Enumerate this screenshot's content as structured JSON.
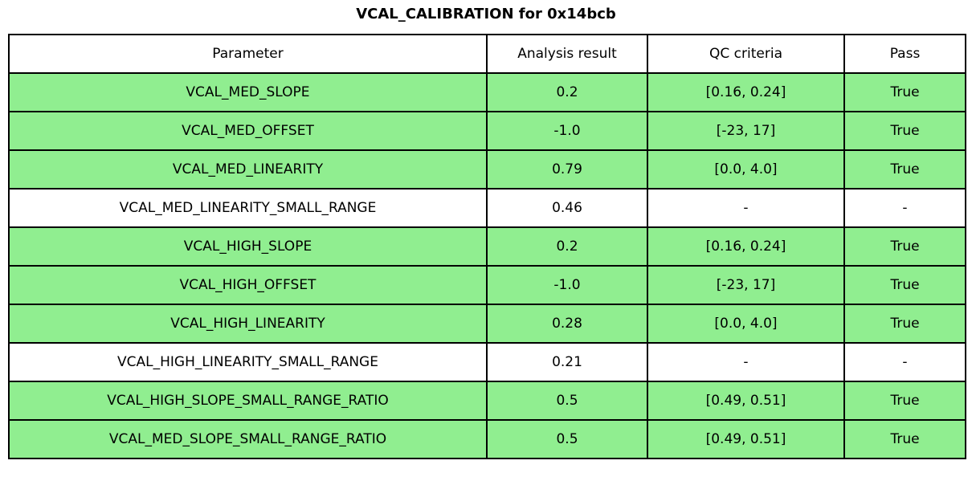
{
  "title": "VCAL_CALIBRATION for 0x14bcb",
  "colors": {
    "pass_row_green": "#90ee90",
    "neutral_row_white": "#ffffff",
    "border_black": "#000000"
  },
  "table": {
    "headers": [
      "Parameter",
      "Analysis result",
      "QC criteria",
      "Pass"
    ],
    "rows": [
      {
        "parameter": "VCAL_MED_SLOPE",
        "result": "0.2",
        "criteria": "[0.16, 0.24]",
        "pass": "True",
        "highlight": true
      },
      {
        "parameter": "VCAL_MED_OFFSET",
        "result": "-1.0",
        "criteria": "[-23, 17]",
        "pass": "True",
        "highlight": true
      },
      {
        "parameter": "VCAL_MED_LINEARITY",
        "result": "0.79",
        "criteria": "[0.0, 4.0]",
        "pass": "True",
        "highlight": true
      },
      {
        "parameter": "VCAL_MED_LINEARITY_SMALL_RANGE",
        "result": "0.46",
        "criteria": "-",
        "pass": "-",
        "highlight": false
      },
      {
        "parameter": "VCAL_HIGH_SLOPE",
        "result": "0.2",
        "criteria": "[0.16, 0.24]",
        "pass": "True",
        "highlight": true
      },
      {
        "parameter": "VCAL_HIGH_OFFSET",
        "result": "-1.0",
        "criteria": "[-23, 17]",
        "pass": "True",
        "highlight": true
      },
      {
        "parameter": "VCAL_HIGH_LINEARITY",
        "result": "0.28",
        "criteria": "[0.0, 4.0]",
        "pass": "True",
        "highlight": true
      },
      {
        "parameter": "VCAL_HIGH_LINEARITY_SMALL_RANGE",
        "result": "0.21",
        "criteria": "-",
        "pass": "-",
        "highlight": false
      },
      {
        "parameter": "VCAL_HIGH_SLOPE_SMALL_RANGE_RATIO",
        "result": "0.5",
        "criteria": "[0.49, 0.51]",
        "pass": "True",
        "highlight": true
      },
      {
        "parameter": "VCAL_MED_SLOPE_SMALL_RANGE_RATIO",
        "result": "0.5",
        "criteria": "[0.49, 0.51]",
        "pass": "True",
        "highlight": true
      }
    ]
  },
  "chart_data": {
    "type": "table",
    "title": "VCAL_CALIBRATION for 0x14bcb",
    "columns": [
      "Parameter",
      "Analysis result",
      "QC criteria",
      "Pass"
    ],
    "rows": [
      [
        "VCAL_MED_SLOPE",
        "0.2",
        "[0.16, 0.24]",
        "True"
      ],
      [
        "VCAL_MED_OFFSET",
        "-1.0",
        "[-23, 17]",
        "True"
      ],
      [
        "VCAL_MED_LINEARITY",
        "0.79",
        "[0.0, 4.0]",
        "True"
      ],
      [
        "VCAL_MED_LINEARITY_SMALL_RANGE",
        "0.46",
        "-",
        "-"
      ],
      [
        "VCAL_HIGH_SLOPE",
        "0.2",
        "[0.16, 0.24]",
        "True"
      ],
      [
        "VCAL_HIGH_OFFSET",
        "-1.0",
        "[-23, 17]",
        "True"
      ],
      [
        "VCAL_HIGH_LINEARITY",
        "0.28",
        "[0.0, 4.0]",
        "True"
      ],
      [
        "VCAL_HIGH_LINEARITY_SMALL_RANGE",
        "0.21",
        "-",
        "-"
      ],
      [
        "VCAL_HIGH_SLOPE_SMALL_RANGE_RATIO",
        "0.5",
        "[0.49, 0.51]",
        "True"
      ],
      [
        "VCAL_MED_SLOPE_SMALL_RANGE_RATIO",
        "0.5",
        "[0.49, 0.51]",
        "True"
      ]
    ],
    "row_highlight_green": [
      true,
      true,
      true,
      false,
      true,
      true,
      true,
      false,
      true,
      true
    ],
    "layout_hints": "title centered above table; all cells center-aligned; green background indicates passing QC rows"
  }
}
